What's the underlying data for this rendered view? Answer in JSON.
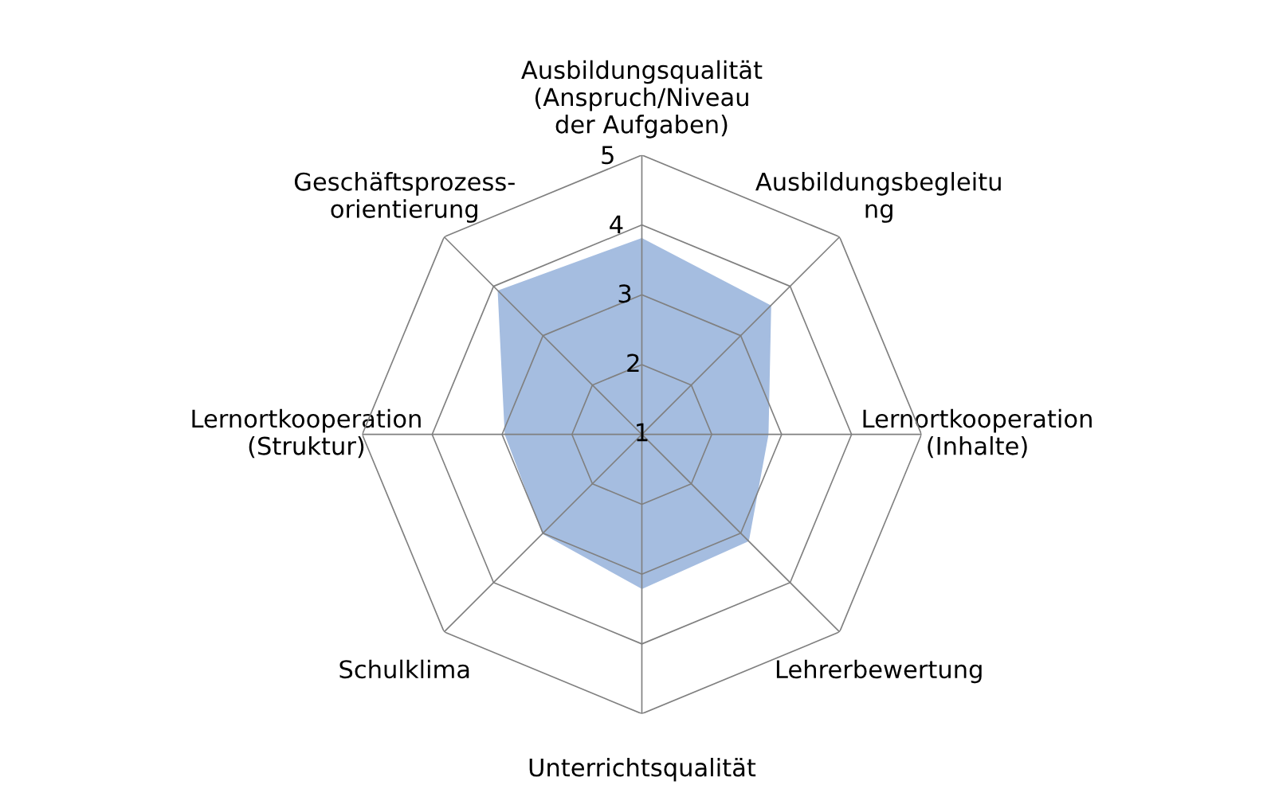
{
  "chart_data": {
    "type": "radar",
    "categories": [
      "Ausbildungsqualität\n(Anspruch/Niveau\nder Aufgaben)",
      "Ausbildungsbegleitu\nng",
      "Lernortkooperation\n(Inhalte)",
      "Lehrerbewertung",
      "Unterrichtsqualität",
      "Schulklima",
      "Lernortkooperation\n(Struktur)",
      "Geschäftsprozess-\norientierung"
    ],
    "series": [
      {
        "type": "area",
        "color": "#a5bde0",
        "values": [
          3.8,
          3.6,
          2.8,
          3.15,
          3.2,
          3.0,
          2.95,
          3.9
        ]
      }
    ],
    "ylim": [
      1,
      5
    ],
    "yticks": [
      1,
      2,
      3,
      4,
      5
    ],
    "grid": true,
    "legend": false,
    "marker": "none"
  }
}
